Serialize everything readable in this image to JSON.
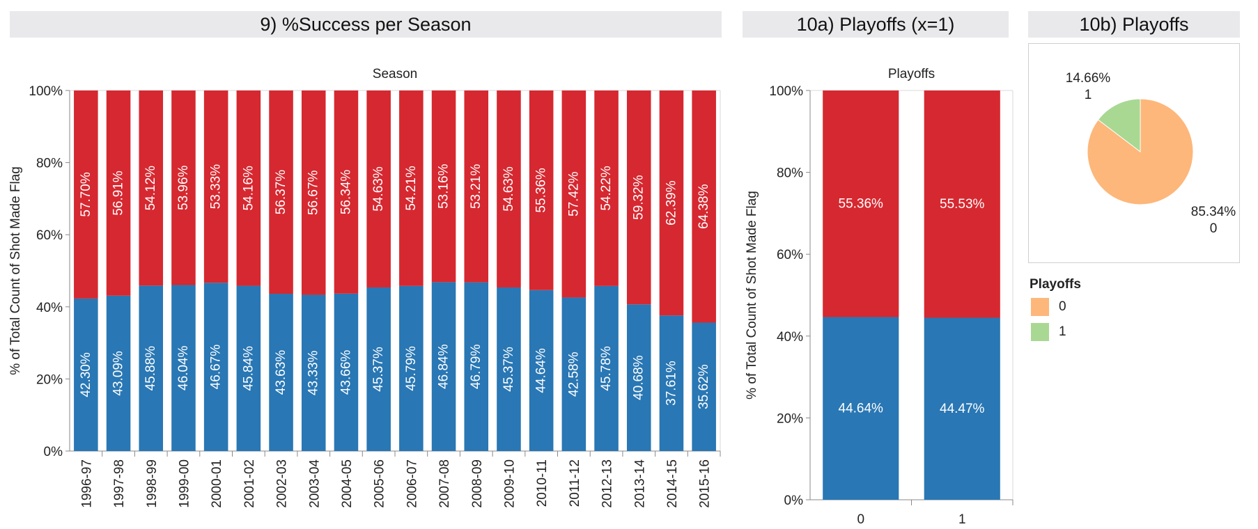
{
  "panels": {
    "season_title": "9) %Success per Season",
    "playoffs_bar_title": "10a) Playoffs (x=1)",
    "playoffs_pie_title": "10b) Playoffs"
  },
  "colors": {
    "made": "#2977b4",
    "missed": "#d62830",
    "pie_0": "#fdb77a",
    "pie_1": "#a9d893"
  },
  "legend": {
    "title": "Playoffs",
    "items": [
      {
        "label": "0",
        "color": "#fdb77a"
      },
      {
        "label": "1",
        "color": "#a9d893"
      }
    ]
  },
  "chart_data": [
    {
      "type": "bar",
      "stacked": true,
      "header": "Season",
      "ylabel": "% of Total Count of Shot Made Flag",
      "ylim": [
        0,
        100
      ],
      "yticks": [
        "0%",
        "20%",
        "40%",
        "60%",
        "80%",
        "100%"
      ],
      "categories": [
        "1996-97",
        "1997-98",
        "1998-99",
        "1999-00",
        "2000-01",
        "2001-02",
        "2002-03",
        "2003-04",
        "2004-05",
        "2005-06",
        "2006-07",
        "2007-08",
        "2008-09",
        "2009-10",
        "2010-11",
        "2011-12",
        "2012-13",
        "2013-14",
        "2014-15",
        "2015-16"
      ],
      "series": [
        {
          "values": [
            42.3,
            43.09,
            45.88,
            46.04,
            46.67,
            45.84,
            43.63,
            43.33,
            43.66,
            45.37,
            45.79,
            46.84,
            46.79,
            45.37,
            44.64,
            42.58,
            45.78,
            40.68,
            37.61,
            35.62
          ],
          "labels": [
            "42.30%",
            "43.09%",
            "45.88%",
            "46.04%",
            "46.67%",
            "45.84%",
            "43.63%",
            "43.33%",
            "43.66%",
            "45.37%",
            "45.79%",
            "46.84%",
            "46.79%",
            "45.37%",
            "44.64%",
            "42.58%",
            "45.78%",
            "40.68%",
            "37.61%",
            "35.62%"
          ],
          "color": "#2977b4"
        },
        {
          "values": [
            57.7,
            56.91,
            54.12,
            53.96,
            53.33,
            54.16,
            56.37,
            56.67,
            56.34,
            54.63,
            54.21,
            53.16,
            53.21,
            54.63,
            55.36,
            57.42,
            54.22,
            59.32,
            62.39,
            64.38
          ],
          "labels": [
            "57.70%",
            "56.91%",
            "54.12%",
            "53.96%",
            "53.33%",
            "54.16%",
            "56.37%",
            "56.67%",
            "56.34%",
            "54.63%",
            "54.21%",
            "53.16%",
            "53.21%",
            "54.63%",
            "55.36%",
            "57.42%",
            "54.22%",
            "59.32%",
            "62.39%",
            "64.38%"
          ],
          "color": "#d62830"
        }
      ]
    },
    {
      "type": "bar",
      "stacked": true,
      "header": "Playoffs",
      "ylabel": "% of Total Count of Shot Made Flag",
      "ylim": [
        0,
        100
      ],
      "yticks": [
        "0%",
        "20%",
        "40%",
        "60%",
        "80%",
        "100%"
      ],
      "categories": [
        "0",
        "1"
      ],
      "series": [
        {
          "values": [
            44.64,
            44.47
          ],
          "labels": [
            "44.64%",
            "44.47%"
          ],
          "color": "#2977b4"
        },
        {
          "values": [
            55.36,
            55.53
          ],
          "labels": [
            "55.36%",
            "55.53%"
          ],
          "color": "#d62830"
        }
      ]
    },
    {
      "type": "pie",
      "categories": [
        "0",
        "1"
      ],
      "values": [
        85.34,
        14.66
      ],
      "labels": [
        "85.34%",
        "14.66%"
      ],
      "colors": [
        "#fdb77a",
        "#a9d893"
      ]
    }
  ]
}
